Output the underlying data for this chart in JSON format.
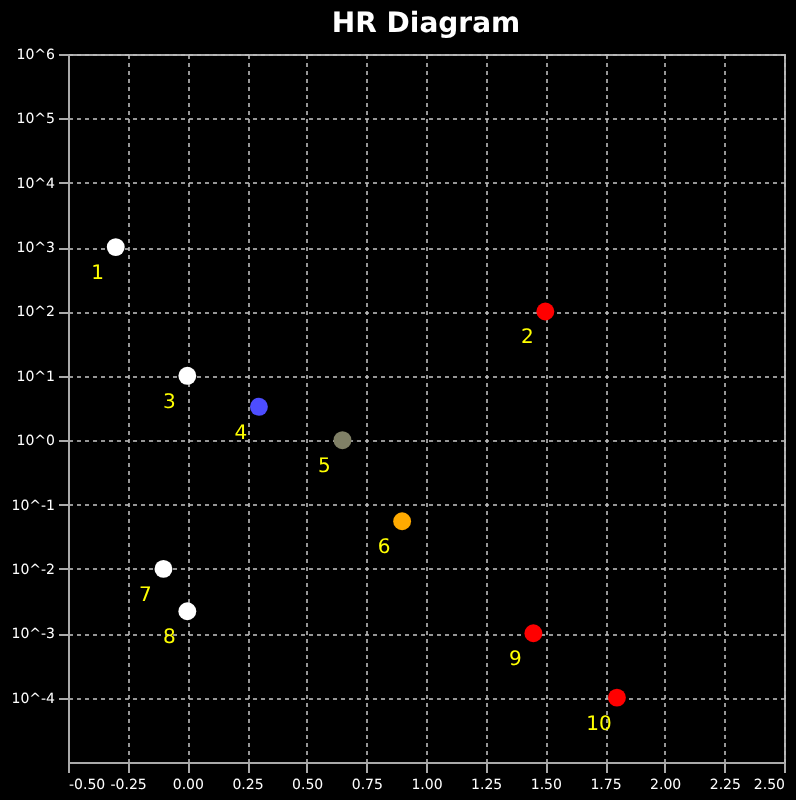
{
  "chart_data": {
    "type": "scatter",
    "title": "HR Diagram",
    "x": [
      -0.3,
      1.5,
      0.0,
      0.3,
      0.65,
      0.9,
      -0.1,
      0.0,
      1.45,
      1.8
    ],
    "values": [
      1000,
      100,
      10,
      3.3,
      1,
      0.055,
      0.01,
      0.0022,
      0.001,
      0.0001
    ],
    "colors": [
      "#ffffff",
      "#ff0000",
      "#ffffff",
      "#4d4dff",
      "#808066",
      "#ffaa00",
      "#ffffff",
      "#ffffff",
      "#ff0000",
      "#ff0000"
    ],
    "marker": "circle",
    "log": "y",
    "grid": true,
    "xlim": [
      -0.5,
      2.5
    ],
    "xticks": [
      {
        "value": -0.5,
        "label": "-0.50"
      },
      {
        "value": -0.25,
        "label": "-0.25"
      },
      {
        "value": 0,
        "label": "0.00"
      },
      {
        "value": 0.25,
        "label": "0.25"
      },
      {
        "value": 0.5,
        "label": "0.50"
      },
      {
        "value": 0.75,
        "label": "0.75"
      },
      {
        "value": 1,
        "label": "1.00"
      },
      {
        "value": 1.25,
        "label": "1.25"
      },
      {
        "value": 1.5,
        "label": "1.50"
      },
      {
        "value": 1.75,
        "label": "1.75"
      },
      {
        "value": 2,
        "label": "2.00"
      },
      {
        "value": 2.25,
        "label": "2.25"
      },
      {
        "value": 2.5,
        "label": "2.50"
      }
    ],
    "ylim": [
      1e-05,
      1000000
    ],
    "yticks": [
      {
        "value": 0.0001,
        "label": "10^-4"
      },
      {
        "value": 0.001,
        "label": "10^-3"
      },
      {
        "value": 0.01,
        "label": "10^-2"
      },
      {
        "value": 0.1,
        "label": "10^-1"
      },
      {
        "value": 1,
        "label": "10^0"
      },
      {
        "value": 10,
        "label": "10^1"
      },
      {
        "value": 100,
        "label": "10^2"
      },
      {
        "value": 1000,
        "label": "10^3"
      },
      {
        "value": 10000,
        "label": "10^4"
      },
      {
        "value": 100000,
        "label": "10^5"
      },
      {
        "value": 1000000,
        "label": "10^6"
      }
    ],
    "annotations": [
      {
        "text": "1",
        "x": -0.3,
        "y": 1000
      },
      {
        "text": "2",
        "x": 1.5,
        "y": 100
      },
      {
        "text": "3",
        "x": 0.0,
        "y": 10
      },
      {
        "text": "4",
        "x": 0.3,
        "y": 3.3
      },
      {
        "text": "5",
        "x": 0.65,
        "y": 1
      },
      {
        "text": "6",
        "x": 0.9,
        "y": 0.055
      },
      {
        "text": "7",
        "x": -0.1,
        "y": 0.01
      },
      {
        "text": "8",
        "x": 0.0,
        "y": 0.0022
      },
      {
        "text": "9",
        "x": 1.45,
        "y": 0.001
      },
      {
        "text": "10",
        "x": 1.8,
        "y": 0.0001
      }
    ]
  }
}
